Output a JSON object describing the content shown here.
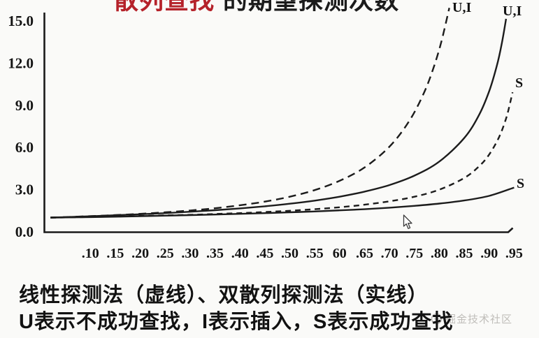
{
  "title": {
    "red_part": "散列查找",
    "black_part": "的期望探测次数",
    "red_color": "#b5222a",
    "black_color": "#1b1b1b"
  },
  "chart_data": {
    "type": "line",
    "title": "散列查找的期望探测次数",
    "xlabel": "",
    "ylabel": "",
    "xlim": [
      0.0,
      1.0
    ],
    "ylim": [
      0.0,
      15.0
    ],
    "grid": false,
    "legend_position": "none",
    "x_ticks": [
      ".10",
      ".15",
      ".20",
      ".25",
      ".30",
      ".35",
      ".40",
      ".45",
      ".50",
      ".55",
      "60",
      ".65",
      ".70",
      ".75",
      ".80",
      ".85",
      ".90",
      ".95"
    ],
    "x_tick_values": [
      0.1,
      0.15,
      0.2,
      0.25,
      0.3,
      0.35,
      0.4,
      0.45,
      0.5,
      0.55,
      0.6,
      0.65,
      0.7,
      0.75,
      0.8,
      0.85,
      0.9,
      0.95
    ],
    "y_ticks": [
      "15.0",
      "12.0",
      "9.0",
      "6.0",
      "3.0",
      "0.0"
    ],
    "y_tick_values": [
      15,
      12,
      9,
      6,
      3,
      0
    ],
    "series": [
      {
        "name": "线性探测法 不成功查找/插入（虚线）",
        "label": "U,I",
        "style": "dashed-long",
        "points": [
          [
            0.02,
            1.02
          ],
          [
            0.05,
            1.05
          ],
          [
            0.1,
            1.12
          ],
          [
            0.15,
            1.19
          ],
          [
            0.2,
            1.28
          ],
          [
            0.25,
            1.39
          ],
          [
            0.3,
            1.52
          ],
          [
            0.35,
            1.68
          ],
          [
            0.4,
            1.89
          ],
          [
            0.45,
            2.15
          ],
          [
            0.5,
            2.5
          ],
          [
            0.55,
            2.97
          ],
          [
            0.6,
            3.63
          ],
          [
            0.65,
            4.58
          ],
          [
            0.7,
            6.06
          ],
          [
            0.74,
            7.9
          ],
          [
            0.77,
            9.95
          ],
          [
            0.79,
            11.84
          ],
          [
            0.805,
            13.65
          ],
          [
            0.82,
            15.93
          ]
        ]
      },
      {
        "name": "双散列探测法 不成功查找/插入（实线）",
        "label": "U,I",
        "style": "solid",
        "points": [
          [
            0.02,
            1.02
          ],
          [
            0.05,
            1.05
          ],
          [
            0.1,
            1.11
          ],
          [
            0.15,
            1.18
          ],
          [
            0.2,
            1.25
          ],
          [
            0.25,
            1.33
          ],
          [
            0.3,
            1.43
          ],
          [
            0.35,
            1.54
          ],
          [
            0.4,
            1.67
          ],
          [
            0.45,
            1.82
          ],
          [
            0.5,
            2.0
          ],
          [
            0.55,
            2.22
          ],
          [
            0.6,
            2.5
          ],
          [
            0.65,
            2.86
          ],
          [
            0.7,
            3.33
          ],
          [
            0.75,
            4.0
          ],
          [
            0.8,
            5.0
          ],
          [
            0.85,
            6.67
          ],
          [
            0.88,
            8.33
          ],
          [
            0.9,
            10.0
          ],
          [
            0.915,
            11.76
          ],
          [
            0.925,
            13.33
          ],
          [
            0.934,
            15.15
          ]
        ]
      },
      {
        "name": "线性探测法 成功查找（虚线）",
        "label": "S",
        "style": "dashed-short",
        "points": [
          [
            0.02,
            1.01
          ],
          [
            0.05,
            1.03
          ],
          [
            0.1,
            1.06
          ],
          [
            0.15,
            1.09
          ],
          [
            0.2,
            1.13
          ],
          [
            0.25,
            1.17
          ],
          [
            0.3,
            1.21
          ],
          [
            0.35,
            1.27
          ],
          [
            0.4,
            1.33
          ],
          [
            0.45,
            1.41
          ],
          [
            0.5,
            1.5
          ],
          [
            0.55,
            1.61
          ],
          [
            0.6,
            1.75
          ],
          [
            0.65,
            1.93
          ],
          [
            0.7,
            2.17
          ],
          [
            0.75,
            2.5
          ],
          [
            0.8,
            3.0
          ],
          [
            0.85,
            3.83
          ],
          [
            0.88,
            4.67
          ],
          [
            0.9,
            5.5
          ],
          [
            0.92,
            6.75
          ],
          [
            0.935,
            8.19
          ],
          [
            0.947,
            9.93
          ]
        ]
      },
      {
        "name": "双散列探测法 成功查找（实线）",
        "label": "S",
        "style": "solid",
        "points": [
          [
            0.02,
            1.01
          ],
          [
            0.05,
            1.03
          ],
          [
            0.1,
            1.05
          ],
          [
            0.15,
            1.08
          ],
          [
            0.2,
            1.12
          ],
          [
            0.25,
            1.15
          ],
          [
            0.3,
            1.19
          ],
          [
            0.35,
            1.23
          ],
          [
            0.4,
            1.28
          ],
          [
            0.45,
            1.33
          ],
          [
            0.5,
            1.39
          ],
          [
            0.55,
            1.45
          ],
          [
            0.6,
            1.53
          ],
          [
            0.65,
            1.61
          ],
          [
            0.7,
            1.72
          ],
          [
            0.75,
            1.85
          ],
          [
            0.8,
            2.01
          ],
          [
            0.85,
            2.23
          ],
          [
            0.9,
            2.56
          ],
          [
            0.95,
            3.15
          ]
        ]
      }
    ]
  },
  "caption": {
    "line1": "线性探测法（虚线）、双散列探测法（实线）",
    "line2": "U表示不成功查找，I表示插入，S表示成功查找"
  },
  "watermark": {
    "text": "掘金技术社区",
    "color": "#c0beba"
  },
  "icons": {
    "cursor": "arrow-cursor",
    "watermark_logo": "juejin-logo"
  },
  "colors": {
    "curve": "#1c1c1c",
    "axis": "#1a1a1a",
    "background": "#fafaf8",
    "title_red": "#b5222a"
  }
}
